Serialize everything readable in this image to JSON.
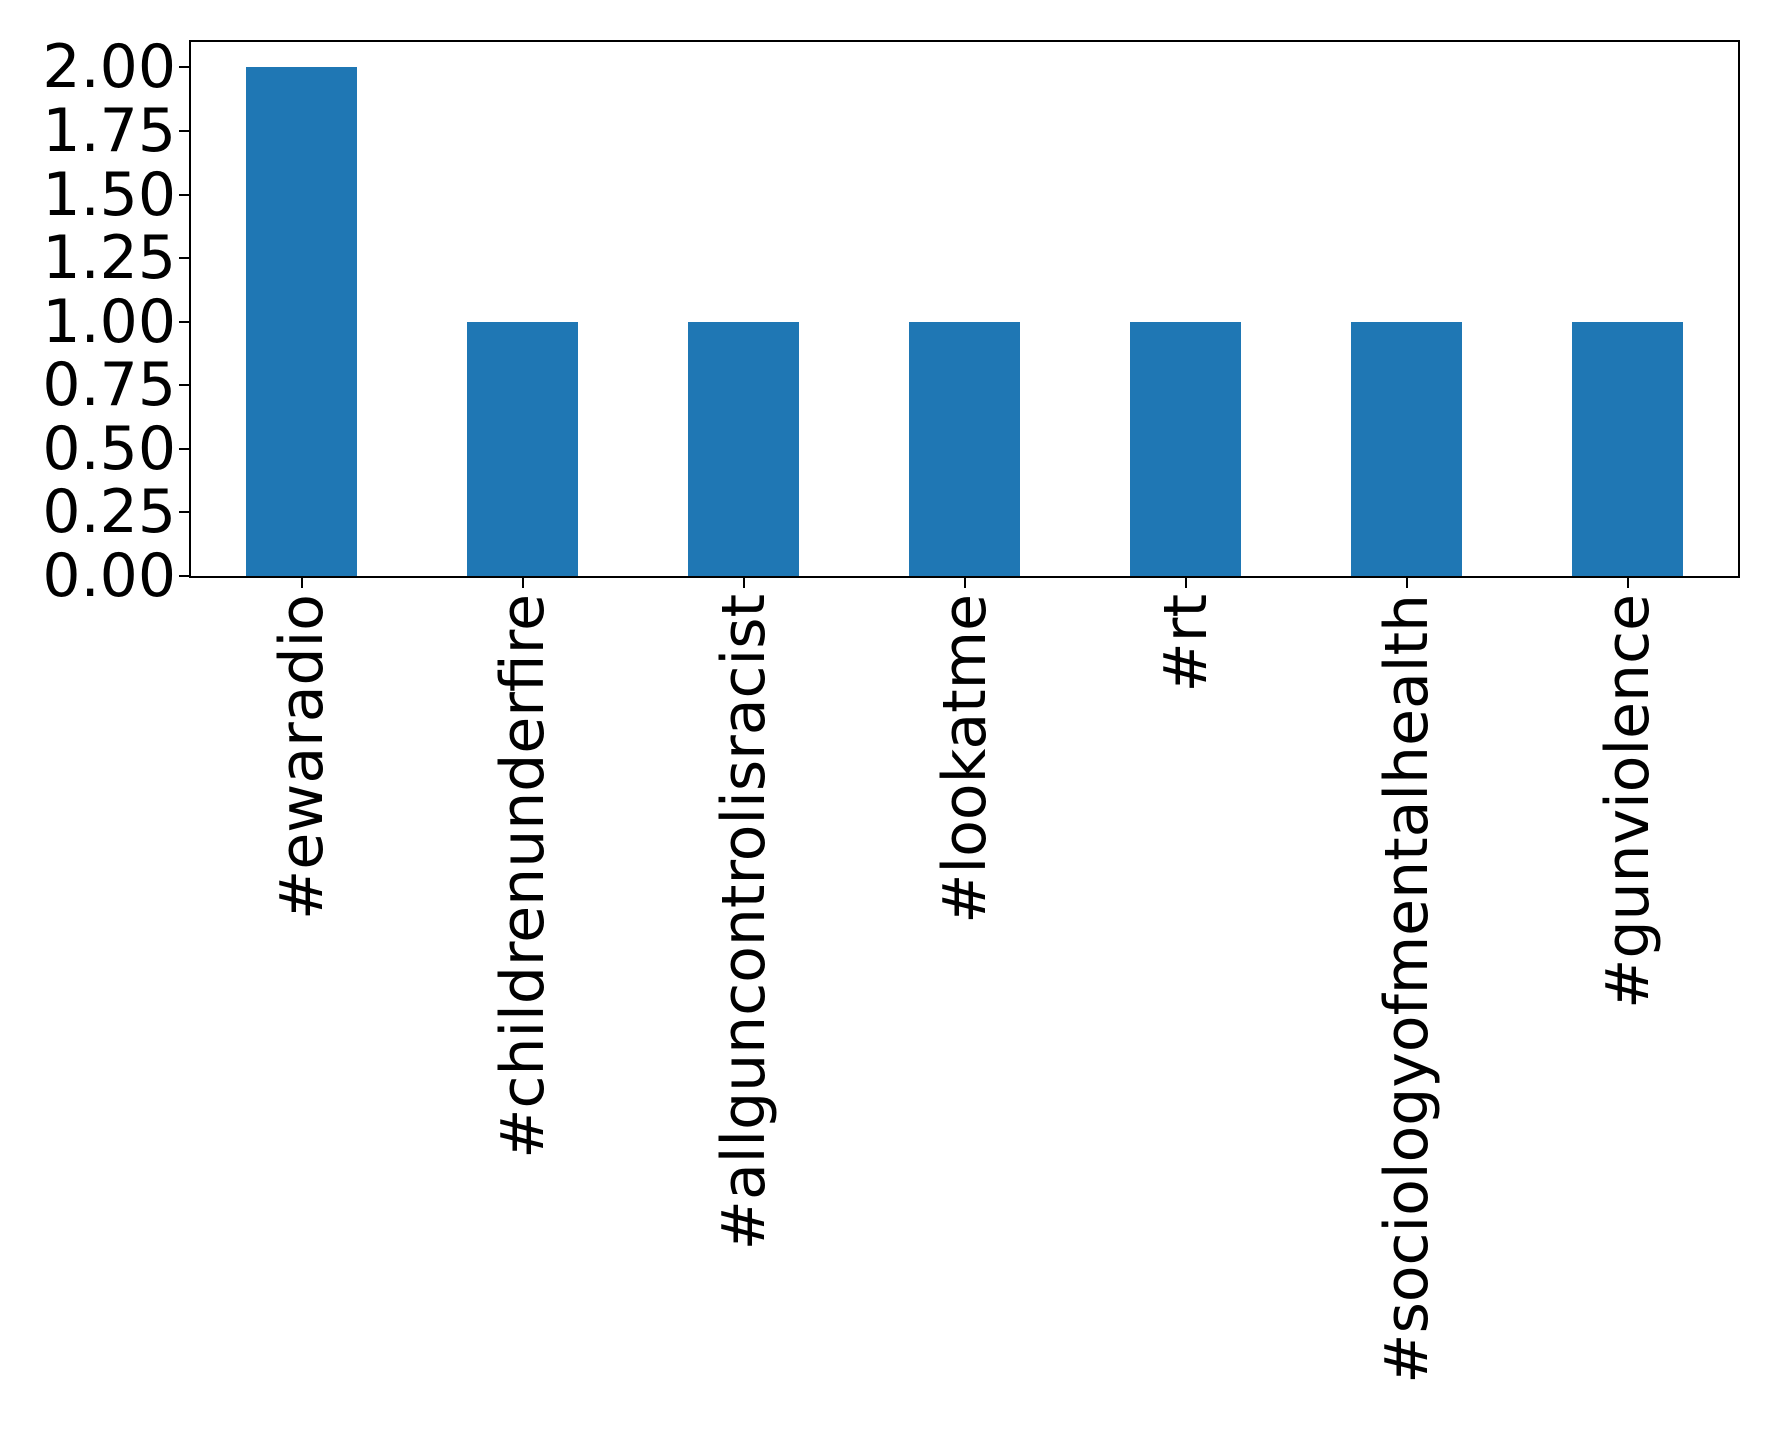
{
  "chart_data": {
    "type": "bar",
    "title": "",
    "xlabel": "",
    "ylabel": "",
    "categories": [
      "#ewaradio",
      "#childrenunderfire",
      "#allguncontrolisracist",
      "#lookatme",
      "#rt",
      "#sociologyofmentalhealth",
      "#gunviolence"
    ],
    "values": [
      2,
      1,
      1,
      1,
      1,
      1,
      1
    ],
    "ylim": [
      0,
      2.1
    ],
    "yticks": [
      0.0,
      0.25,
      0.5,
      0.75,
      1.0,
      1.25,
      1.5,
      1.75,
      2.0
    ],
    "ytick_labels": [
      "0.00",
      "0.25",
      "0.50",
      "0.75",
      "1.00",
      "1.25",
      "1.50",
      "1.75",
      "2.00"
    ],
    "xtick_rotation_deg": 90,
    "bar_color": "#1f77b4",
    "bar_width_fraction": 0.5,
    "spine_color": "#000000",
    "text_color": "#000000",
    "grid": false,
    "legend": false
  }
}
